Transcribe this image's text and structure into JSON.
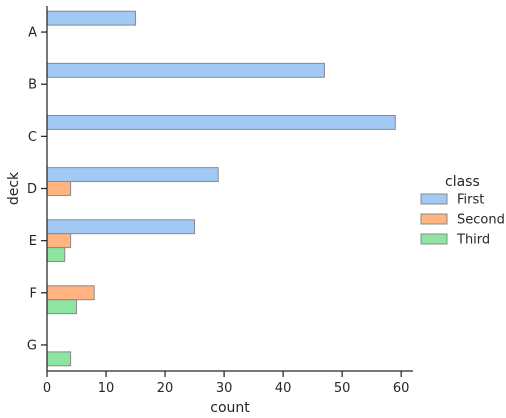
{
  "chart_data": {
    "type": "bar",
    "orientation": "horizontal",
    "categories": [
      "A",
      "B",
      "C",
      "D",
      "E",
      "F",
      "G"
    ],
    "series": [
      {
        "name": "First",
        "color": "#a1c9f4",
        "values": [
          15,
          47,
          59,
          29,
          25,
          0,
          0
        ]
      },
      {
        "name": "Second",
        "color": "#ffb482",
        "values": [
          0,
          0,
          0,
          4,
          4,
          8,
          0
        ]
      },
      {
        "name": "Third",
        "color": "#8de5a1",
        "values": [
          0,
          0,
          0,
          0,
          3,
          5,
          4
        ]
      }
    ],
    "xlabel": "count",
    "ylabel": "deck",
    "xlim": [
      0,
      62
    ],
    "xticks": [
      0,
      10,
      20,
      30,
      40,
      50,
      60
    ],
    "grid": false,
    "legend": {
      "title": "class",
      "placement": "right"
    }
  }
}
